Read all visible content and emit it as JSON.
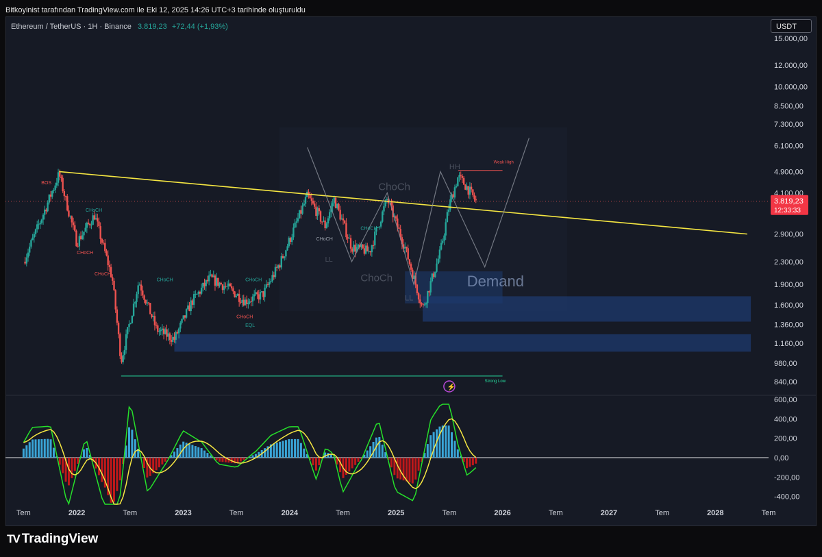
{
  "header": {
    "caption": "Bitkoyinist tarafından TradingView.com ile Eki 12, 2025 14:26 UTC+3 tarihinde oluşturuldu"
  },
  "symbol": {
    "name": "Ethereum / TetherUS · 1H · Binance",
    "price": "3.819,23",
    "change": "+72,44 (+1,93%)"
  },
  "currency_button": "USDT",
  "footer": {
    "brand": "TradingView"
  },
  "colors": {
    "up": "#26a69a",
    "down": "#ef5350",
    "trendline": "#f5e642",
    "zone": "#1e3a6e",
    "price_label": "#f23645"
  },
  "chart_data": [
    {
      "type": "candlestick",
      "title": "Ethereum / TetherUS · 1H · Binance",
      "y_scale": "log",
      "ylim": [
        760,
        17000
      ],
      "y_ticks": [
        "15.000,00",
        "12.000,00",
        "10.000,00",
        "8.500,00",
        "7.300,00",
        "6.100,00",
        "4.900,00",
        "4.100,00",
        "2.900,00",
        "2.300,00",
        "1.900,00",
        "1.600,00",
        "1.360,00",
        "1.160,00",
        "980,00",
        "840,00"
      ],
      "x_ticks": [
        "Tem",
        "2022",
        "Tem",
        "2023",
        "Tem",
        "2024",
        "Tem",
        "2025",
        "Tem",
        "2026",
        "Tem",
        "2027",
        "Tem",
        "2028",
        "Tem"
      ],
      "current_price_label": "3.819,23",
      "countdown_label": "12:33:33",
      "price_path": [
        {
          "t": "2021-07",
          "close": 2300
        },
        {
          "t": "2021-09",
          "close": 3300
        },
        {
          "t": "2021-11",
          "close": 4800
        },
        {
          "t": "2022-01",
          "close": 2700
        },
        {
          "t": "2022-03",
          "close": 3400
        },
        {
          "t": "2022-05",
          "close": 2000
        },
        {
          "t": "2022-06",
          "close": 1000
        },
        {
          "t": "2022-08",
          "close": 1950
        },
        {
          "t": "2022-10",
          "close": 1300
        },
        {
          "t": "2022-12",
          "close": 1200
        },
        {
          "t": "2023-02",
          "close": 1650
        },
        {
          "t": "2023-04",
          "close": 2000
        },
        {
          "t": "2023-06",
          "close": 1850
        },
        {
          "t": "2023-08",
          "close": 1650
        },
        {
          "t": "2023-10",
          "close": 1750
        },
        {
          "t": "2023-12",
          "close": 2300
        },
        {
          "t": "2024-03",
          "close": 4000
        },
        {
          "t": "2024-05",
          "close": 3100
        },
        {
          "t": "2024-06",
          "close": 3900
        },
        {
          "t": "2024-08",
          "close": 2600
        },
        {
          "t": "2024-10",
          "close": 2500
        },
        {
          "t": "2024-12",
          "close": 3900
        },
        {
          "t": "2025-02",
          "close": 2600
        },
        {
          "t": "2025-04",
          "close": 1550
        },
        {
          "t": "2025-06",
          "close": 2500
        },
        {
          "t": "2025-07",
          "close": 3700
        },
        {
          "t": "2025-08",
          "close": 4700
        },
        {
          "t": "2025-09",
          "close": 4300
        },
        {
          "t": "2025-10",
          "close": 3819
        }
      ],
      "annotations": [
        "BOS",
        "CHoCH",
        "CHoCH",
        "CHoCH",
        "CHoCH",
        "CHoCH",
        "CHoCH",
        "EQL",
        "CHoCH",
        "LL",
        "CHoCH",
        "ChoCh",
        "ChoCh",
        "HH",
        "LL",
        "Weak High",
        "Strong Low",
        "Demand"
      ]
    },
    {
      "type": "oscillator",
      "ylim": [
        -500,
        650
      ],
      "y_ticks": [
        "600,00",
        "400,00",
        "200,00",
        "0,00",
        "-200,00",
        "-400,00"
      ],
      "series": [
        {
          "name": "",
          "color": "#26e02a"
        },
        {
          "name": "",
          "color": "#f5e642"
        }
      ]
    }
  ]
}
